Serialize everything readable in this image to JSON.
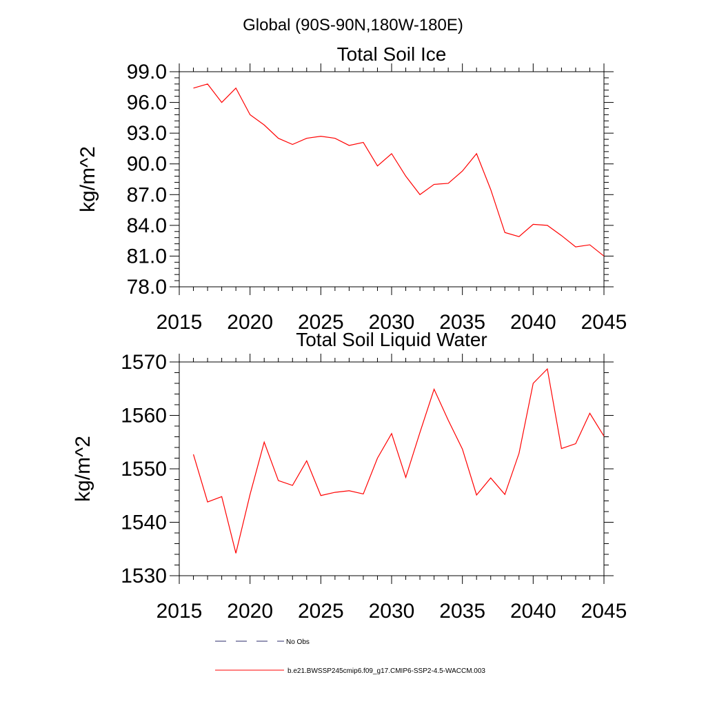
{
  "figure": {
    "title": "Global (90S-90N,180W-180E)"
  },
  "chart_data": [
    {
      "type": "line",
      "title": "Total Soil Ice",
      "xlabel": "",
      "ylabel": "kg/m^2",
      "xlim": [
        2015,
        2045
      ],
      "ylim": [
        78,
        99
      ],
      "xticks": [
        2015,
        2020,
        2025,
        2030,
        2035,
        2040,
        2045
      ],
      "xtick_labels": [
        "2015",
        "2020",
        "2025",
        "2030",
        "2035",
        "2040",
        "2045"
      ],
      "yticks": [
        78,
        81,
        84,
        87,
        90,
        93,
        96,
        99
      ],
      "ytick_labels": [
        "78.0",
        "81.0",
        "84.0",
        "87.0",
        "90.0",
        "93.0",
        "96.0",
        "99.0"
      ],
      "grid": false,
      "series": [
        {
          "name": "b.e21.BWSSP245cmip6.f09_g17.CMIP6-SSP2-4.5-WACCM.003",
          "color": "#ff0000",
          "x": [
            2016,
            2017,
            2018,
            2019,
            2020,
            2021,
            2022,
            2023,
            2024,
            2025,
            2026,
            2027,
            2028,
            2029,
            2030,
            2031,
            2032,
            2033,
            2034,
            2035,
            2036,
            2037,
            2038,
            2039,
            2040,
            2041,
            2042,
            2043,
            2044,
            2045
          ],
          "values": [
            97.4,
            97.8,
            96.0,
            97.4,
            94.8,
            93.8,
            92.5,
            91.9,
            92.5,
            92.7,
            92.5,
            91.8,
            92.1,
            89.8,
            91.0,
            88.8,
            87.0,
            88.0,
            88.1,
            89.3,
            91.0,
            87.5,
            83.3,
            82.9,
            84.1,
            84.0,
            83.0,
            81.9,
            82.1,
            81.0
          ]
        }
      ]
    },
    {
      "type": "line",
      "title": "Total Soil Liquid Water",
      "xlabel": "",
      "ylabel": "kg/m^2",
      "xlim": [
        2015,
        2045
      ],
      "ylim": [
        1530,
        1570
      ],
      "xticks": [
        2015,
        2020,
        2025,
        2030,
        2035,
        2040,
        2045
      ],
      "xtick_labels": [
        "2015",
        "2020",
        "2025",
        "2030",
        "2035",
        "2040",
        "2045"
      ],
      "yticks": [
        1530,
        1540,
        1550,
        1560,
        1570
      ],
      "ytick_labels": [
        "1530",
        "1540",
        "1550",
        "1560",
        "1570"
      ],
      "grid": false,
      "series": [
        {
          "name": "b.e21.BWSSP245cmip6.f09_g17.CMIP6-SSP2-4.5-WACCM.003",
          "color": "#ff0000",
          "x": [
            2016,
            2017,
            2018,
            2019,
            2020,
            2021,
            2022,
            2023,
            2024,
            2025,
            2026,
            2027,
            2028,
            2029,
            2030,
            2031,
            2032,
            2033,
            2034,
            2035,
            2036,
            2037,
            2038,
            2039,
            2040,
            2041,
            2042,
            2043,
            2044,
            2045
          ],
          "values": [
            1552.7,
            1543.8,
            1544.8,
            1534.2,
            1545.2,
            1555.0,
            1547.8,
            1546.9,
            1551.5,
            1545.0,
            1545.6,
            1545.9,
            1545.3,
            1552.0,
            1556.6,
            1548.4,
            1556.8,
            1564.9,
            1559.1,
            1553.7,
            1545.1,
            1548.3,
            1545.2,
            1552.9,
            1566.0,
            1568.7,
            1553.8,
            1554.7,
            1560.4,
            1556.1
          ]
        }
      ]
    }
  ],
  "legend": {
    "placement": "bottom-center",
    "entries": [
      {
        "label": "No Obs",
        "style": "dashed",
        "color": "#2a2a6a"
      },
      {
        "label": "b.e21.BWSSP245cmip6.f09_g17.CMIP6-SSP2-4.5-WACCM.003",
        "style": "solid",
        "color": "#ff0000"
      }
    ]
  }
}
